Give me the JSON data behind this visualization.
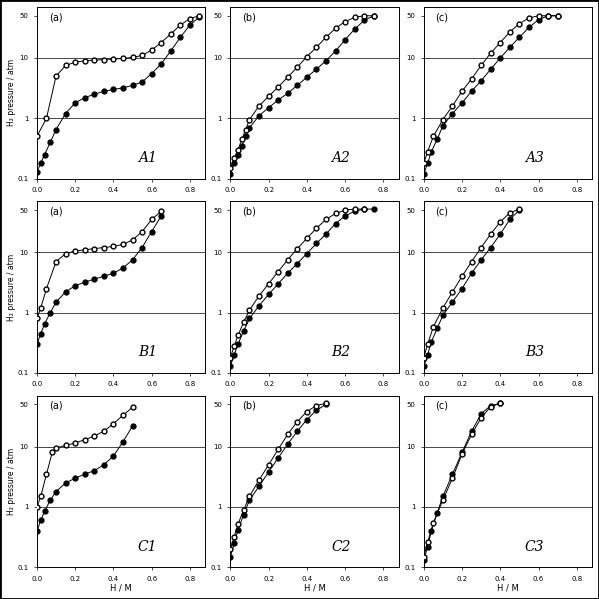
{
  "curves": {
    "A1": {
      "abs_x": [
        0.0,
        0.02,
        0.04,
        0.07,
        0.1,
        0.15,
        0.2,
        0.25,
        0.3,
        0.35,
        0.4,
        0.45,
        0.5,
        0.55,
        0.6,
        0.65,
        0.7,
        0.75,
        0.8,
        0.85
      ],
      "abs_y": [
        0.13,
        0.18,
        0.25,
        0.4,
        0.65,
        1.2,
        1.8,
        2.2,
        2.5,
        2.8,
        3.0,
        3.2,
        3.5,
        4.0,
        5.5,
        8.0,
        13.0,
        22.0,
        35.0,
        48.0
      ],
      "des_x": [
        0.0,
        0.05,
        0.1,
        0.15,
        0.2,
        0.25,
        0.3,
        0.35,
        0.4,
        0.45,
        0.5,
        0.55,
        0.6,
        0.65,
        0.7,
        0.75,
        0.8,
        0.85
      ],
      "des_y": [
        0.5,
        1.0,
        5.0,
        7.5,
        8.5,
        9.0,
        9.2,
        9.4,
        9.6,
        9.8,
        10.2,
        11.0,
        13.5,
        18.0,
        25.0,
        35.0,
        45.0,
        50.0
      ]
    },
    "A2": {
      "abs_x": [
        0.0,
        0.02,
        0.04,
        0.06,
        0.08,
        0.1,
        0.15,
        0.2,
        0.25,
        0.3,
        0.35,
        0.4,
        0.45,
        0.5,
        0.55,
        0.6,
        0.65,
        0.7,
        0.75
      ],
      "abs_y": [
        0.12,
        0.18,
        0.25,
        0.35,
        0.5,
        0.7,
        1.1,
        1.5,
        2.0,
        2.6,
        3.5,
        4.8,
        6.5,
        9.0,
        13.0,
        20.0,
        30.0,
        42.0,
        50.0
      ],
      "des_x": [
        0.0,
        0.02,
        0.04,
        0.06,
        0.08,
        0.1,
        0.15,
        0.2,
        0.25,
        0.3,
        0.35,
        0.4,
        0.45,
        0.5,
        0.55,
        0.6,
        0.65,
        0.7,
        0.75
      ],
      "des_y": [
        0.15,
        0.22,
        0.3,
        0.45,
        0.65,
        0.95,
        1.6,
        2.3,
        3.3,
        4.8,
        7.0,
        10.5,
        15.0,
        22.0,
        31.0,
        40.0,
        47.0,
        50.0,
        50.0
      ]
    },
    "A3": {
      "abs_x": [
        0.0,
        0.02,
        0.04,
        0.07,
        0.1,
        0.15,
        0.2,
        0.25,
        0.3,
        0.35,
        0.4,
        0.45,
        0.5,
        0.55,
        0.6,
        0.65,
        0.7
      ],
      "abs_y": [
        0.12,
        0.18,
        0.28,
        0.45,
        0.75,
        1.2,
        1.8,
        2.8,
        4.2,
        6.5,
        10.0,
        15.0,
        22.0,
        32.0,
        43.0,
        50.0,
        50.0
      ],
      "des_x": [
        0.0,
        0.02,
        0.05,
        0.1,
        0.15,
        0.2,
        0.25,
        0.3,
        0.35,
        0.4,
        0.45,
        0.5,
        0.55,
        0.6,
        0.65,
        0.7
      ],
      "des_y": [
        0.18,
        0.28,
        0.5,
        0.95,
        1.6,
        2.8,
        4.5,
        7.5,
        12.0,
        18.0,
        27.0,
        37.0,
        46.0,
        50.0,
        50.0,
        50.0
      ]
    },
    "B1": {
      "abs_x": [
        0.0,
        0.02,
        0.04,
        0.07,
        0.1,
        0.15,
        0.2,
        0.25,
        0.3,
        0.35,
        0.4,
        0.45,
        0.5,
        0.55,
        0.6,
        0.65
      ],
      "abs_y": [
        0.3,
        0.45,
        0.65,
        1.0,
        1.5,
        2.2,
        2.8,
        3.2,
        3.6,
        4.0,
        4.5,
        5.5,
        7.5,
        12.0,
        22.0,
        40.0
      ],
      "des_x": [
        0.0,
        0.02,
        0.05,
        0.1,
        0.15,
        0.2,
        0.25,
        0.3,
        0.35,
        0.4,
        0.45,
        0.5,
        0.55,
        0.6,
        0.65
      ],
      "des_y": [
        0.8,
        1.2,
        2.5,
        7.0,
        9.5,
        10.5,
        11.0,
        11.5,
        12.0,
        12.5,
        13.5,
        16.0,
        22.0,
        35.0,
        48.0
      ]
    },
    "B2": {
      "abs_x": [
        0.0,
        0.02,
        0.04,
        0.07,
        0.1,
        0.15,
        0.2,
        0.25,
        0.3,
        0.35,
        0.4,
        0.45,
        0.5,
        0.55,
        0.6,
        0.65,
        0.7,
        0.75
      ],
      "abs_y": [
        0.13,
        0.2,
        0.3,
        0.5,
        0.8,
        1.3,
        2.0,
        3.0,
        4.5,
        6.5,
        9.5,
        14.0,
        20.0,
        30.0,
        40.0,
        48.0,
        52.0,
        52.0
      ],
      "des_x": [
        0.0,
        0.02,
        0.04,
        0.07,
        0.1,
        0.15,
        0.2,
        0.25,
        0.3,
        0.35,
        0.4,
        0.45,
        0.5,
        0.55,
        0.6,
        0.65,
        0.7
      ],
      "des_y": [
        0.18,
        0.28,
        0.42,
        0.7,
        1.1,
        1.9,
        3.0,
        4.8,
        7.5,
        11.5,
        17.0,
        25.0,
        35.0,
        44.0,
        50.0,
        52.0,
        52.0
      ]
    },
    "B3": {
      "abs_x": [
        0.0,
        0.02,
        0.04,
        0.07,
        0.1,
        0.15,
        0.2,
        0.25,
        0.3,
        0.35,
        0.4,
        0.45,
        0.5
      ],
      "abs_y": [
        0.13,
        0.2,
        0.33,
        0.55,
        0.9,
        1.5,
        2.5,
        4.5,
        7.5,
        12.0,
        20.0,
        35.0,
        50.0
      ],
      "des_x": [
        0.0,
        0.02,
        0.05,
        0.1,
        0.15,
        0.2,
        0.25,
        0.3,
        0.35,
        0.4,
        0.45,
        0.5
      ],
      "des_y": [
        0.18,
        0.3,
        0.58,
        1.2,
        2.2,
        4.0,
        7.0,
        12.0,
        20.0,
        32.0,
        45.0,
        52.0
      ]
    },
    "C1": {
      "abs_x": [
        0.0,
        0.02,
        0.04,
        0.07,
        0.1,
        0.15,
        0.2,
        0.25,
        0.3,
        0.35,
        0.4,
        0.45,
        0.5
      ],
      "abs_y": [
        0.4,
        0.6,
        0.85,
        1.3,
        1.8,
        2.5,
        3.0,
        3.5,
        4.0,
        5.0,
        7.0,
        12.0,
        22.0
      ],
      "des_x": [
        0.0,
        0.02,
        0.05,
        0.08,
        0.1,
        0.15,
        0.2,
        0.25,
        0.3,
        0.35,
        0.4,
        0.45,
        0.5
      ],
      "des_y": [
        1.0,
        1.5,
        3.5,
        8.0,
        9.5,
        10.5,
        11.5,
        13.0,
        15.0,
        18.0,
        24.0,
        33.0,
        45.0
      ]
    },
    "C2": {
      "abs_x": [
        0.0,
        0.02,
        0.04,
        0.07,
        0.1,
        0.15,
        0.2,
        0.25,
        0.3,
        0.35,
        0.4,
        0.45,
        0.5
      ],
      "abs_y": [
        0.15,
        0.25,
        0.42,
        0.75,
        1.3,
        2.2,
        3.8,
        6.5,
        11.0,
        18.0,
        28.0,
        40.0,
        50.0
      ],
      "des_x": [
        0.0,
        0.02,
        0.04,
        0.07,
        0.1,
        0.15,
        0.2,
        0.25,
        0.3,
        0.35,
        0.4,
        0.45,
        0.5
      ],
      "des_y": [
        0.2,
        0.32,
        0.52,
        0.9,
        1.5,
        2.8,
        5.0,
        9.0,
        16.0,
        26.0,
        38.0,
        48.0,
        52.0
      ]
    },
    "C3": {
      "abs_x": [
        0.0,
        0.02,
        0.04,
        0.07,
        0.1,
        0.15,
        0.2,
        0.25,
        0.3,
        0.35,
        0.4
      ],
      "abs_y": [
        0.13,
        0.22,
        0.4,
        0.8,
        1.5,
        3.5,
        8.0,
        18.0,
        35.0,
        48.0,
        52.0
      ],
      "des_x": [
        0.0,
        0.02,
        0.05,
        0.1,
        0.15,
        0.2,
        0.25,
        0.3,
        0.35,
        0.4
      ],
      "des_y": [
        0.15,
        0.26,
        0.55,
        1.3,
        3.0,
        7.5,
        16.0,
        30.0,
        46.0,
        52.0
      ]
    }
  },
  "subplot_order": [
    "A1",
    "A2",
    "A3",
    "B1",
    "B2",
    "B3",
    "C1",
    "C2",
    "C3"
  ],
  "subplot_labels_top": [
    "(a)",
    "(b)",
    "(c)",
    "(a)",
    "(b)",
    "(c)",
    "(a)",
    "(b)",
    "(c)"
  ],
  "subplot_labels_name": [
    "A1",
    "A2",
    "A3",
    "B1",
    "B2",
    "B3",
    "C1",
    "C2",
    "C3"
  ],
  "ylim": [
    0.1,
    70
  ],
  "xlim": [
    0,
    0.88
  ],
  "xlabel": "H / M",
  "ylabel": "H₂ pressure / atm",
  "hline_values": [
    1.0,
    10.0
  ],
  "markersize": 3.5,
  "linewidth": 0.7,
  "figure_bg": "white",
  "subplot_bg": "white"
}
